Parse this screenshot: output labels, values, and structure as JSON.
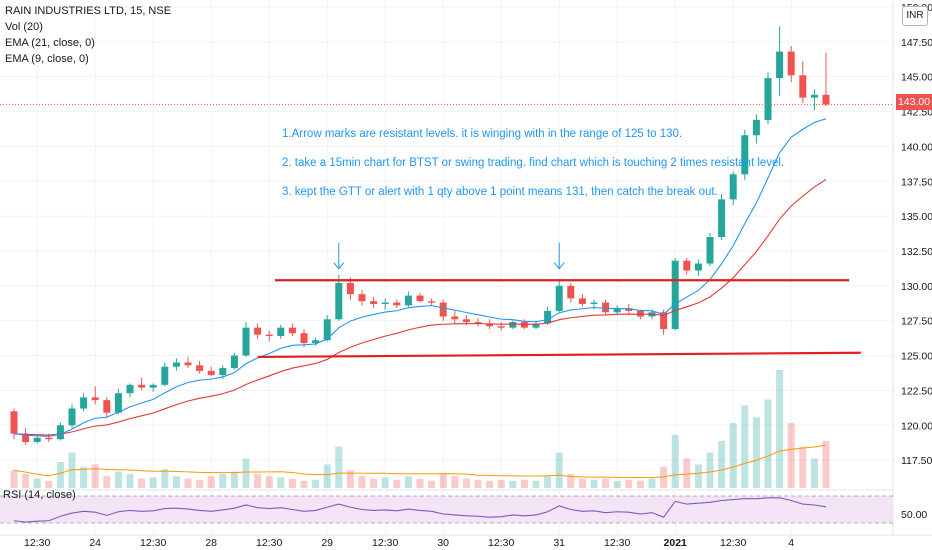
{
  "legend": {
    "title": "RAIN INDUSTRIES LTD, 15, NSE",
    "vol": "Vol (20)",
    "ema21": "EMA (21, close, 0)",
    "ema9": "EMA (9, close, 0)"
  },
  "currency_badge": "INR",
  "last_price_label": "143.00",
  "rsi_label": "RSI (14, close)",
  "notes": [
    "1.Arrow marks are resistant levels. it is winging with in the range of 125 to 130.",
    "2.  take a 15min chart for BTST or swing trading. find chart which is touching 2 times resistant level.",
    "3.  kept the GTT or alert with 1 qty above 1 point means 131, then catch the break out."
  ],
  "colors": {
    "up": "#26a69a",
    "down": "#ef5350",
    "ema9": "#2196f3",
    "ema21": "#e53935",
    "trendline": "#e31e1e",
    "annotation": "#2196f3",
    "rsi": "#7e57c2",
    "rsi_band": "#f3e5f5",
    "grid": "#f0f3fa",
    "axis_text": "#131722"
  },
  "chart_data": {
    "type": "candlestick",
    "symbol": "RAIN INDUSTRIES LTD",
    "interval": "15",
    "exchange": "NSE",
    "y_axis": {
      "ticks": [
        "117.50",
        "120.00",
        "122.50",
        "125.00",
        "127.50",
        "130.00",
        "132.50",
        "135.00",
        "137.50",
        "140.00",
        "142.50",
        "145.00",
        "147.50",
        "150.00"
      ],
      "ylim": [
        115.5,
        150.5
      ]
    },
    "x_axis": {
      "ticks": [
        {
          "label": "12:30",
          "i": 2
        },
        {
          "label": "24",
          "i": 7
        },
        {
          "label": "12:30",
          "i": 12
        },
        {
          "label": "28",
          "i": 17
        },
        {
          "label": "12:30",
          "i": 22
        },
        {
          "label": "29",
          "i": 27
        },
        {
          "label": "12:30",
          "i": 32
        },
        {
          "label": "30",
          "i": 37
        },
        {
          "label": "12:30",
          "i": 42
        },
        {
          "label": "31",
          "i": 47
        },
        {
          "label": "12:30",
          "i": 52
        },
        {
          "label": "2021",
          "i": 57
        },
        {
          "label": "12:30",
          "i": 62
        },
        {
          "label": "4",
          "i": 67
        }
      ]
    },
    "ohlc": [
      [
        121.0,
        121.2,
        119.0,
        119.4
      ],
      [
        119.4,
        119.8,
        118.6,
        118.8
      ],
      [
        118.8,
        119.3,
        118.7,
        119.1
      ],
      [
        119.1,
        119.4,
        118.8,
        119.0
      ],
      [
        119.0,
        120.2,
        118.9,
        120.0
      ],
      [
        120.0,
        121.5,
        119.8,
        121.2
      ],
      [
        121.2,
        122.3,
        121.0,
        122.0
      ],
      [
        122.0,
        122.8,
        121.5,
        121.8
      ],
      [
        121.8,
        122.0,
        120.5,
        120.9
      ],
      [
        120.9,
        122.6,
        120.8,
        122.3
      ],
      [
        122.3,
        123.0,
        122.0,
        122.9
      ],
      [
        122.9,
        123.4,
        122.5,
        122.7
      ],
      [
        122.7,
        123.0,
        122.4,
        122.9
      ],
      [
        122.9,
        124.5,
        122.8,
        124.2
      ],
      [
        124.2,
        124.8,
        123.9,
        124.5
      ],
      [
        124.5,
        124.9,
        124.1,
        124.3
      ],
      [
        124.3,
        124.6,
        123.7,
        123.9
      ],
      [
        123.9,
        124.2,
        123.5,
        123.6
      ],
      [
        123.6,
        124.3,
        123.3,
        124.1
      ],
      [
        124.1,
        125.2,
        124.0,
        125.0
      ],
      [
        125.0,
        127.4,
        124.9,
        127.0
      ],
      [
        127.0,
        127.3,
        126.2,
        126.5
      ],
      [
        126.5,
        126.8,
        126.0,
        126.4
      ],
      [
        126.4,
        127.2,
        126.2,
        127.0
      ],
      [
        127.0,
        127.3,
        126.4,
        126.6
      ],
      [
        126.6,
        126.9,
        125.6,
        125.9
      ],
      [
        125.9,
        126.3,
        125.7,
        126.1
      ],
      [
        126.1,
        127.9,
        126.0,
        127.6
      ],
      [
        127.6,
        130.8,
        127.5,
        130.2
      ],
      [
        130.2,
        130.6,
        129.0,
        129.4
      ],
      [
        129.4,
        129.7,
        128.6,
        128.9
      ],
      [
        128.9,
        129.2,
        128.4,
        128.7
      ],
      [
        128.7,
        129.1,
        128.3,
        128.8
      ],
      [
        128.8,
        129.0,
        128.4,
        128.6
      ],
      [
        128.6,
        129.6,
        128.5,
        129.3
      ],
      [
        129.3,
        129.5,
        128.8,
        128.9
      ],
      [
        128.9,
        129.1,
        128.6,
        128.8
      ],
      [
        128.8,
        129.0,
        127.5,
        127.8
      ],
      [
        127.8,
        128.2,
        127.3,
        127.6
      ],
      [
        127.6,
        127.9,
        127.2,
        127.4
      ],
      [
        127.4,
        127.7,
        127.1,
        127.3
      ],
      [
        127.3,
        127.6,
        126.9,
        127.1
      ],
      [
        127.1,
        127.4,
        126.8,
        127.0
      ],
      [
        127.0,
        127.5,
        126.9,
        127.4
      ],
      [
        127.4,
        127.6,
        126.9,
        127.0
      ],
      [
        127.0,
        127.5,
        126.9,
        127.3
      ],
      [
        127.3,
        128.5,
        127.2,
        128.2
      ],
      [
        128.2,
        130.5,
        128.1,
        130.0
      ],
      [
        130.0,
        130.2,
        128.8,
        129.1
      ],
      [
        129.1,
        129.4,
        128.5,
        128.7
      ],
      [
        128.7,
        129.0,
        128.3,
        128.8
      ],
      [
        128.8,
        129.0,
        127.9,
        128.1
      ],
      [
        128.1,
        128.6,
        127.9,
        128.4
      ],
      [
        128.4,
        128.7,
        128.0,
        128.2
      ],
      [
        128.2,
        128.3,
        127.6,
        127.8
      ],
      [
        127.8,
        128.3,
        127.6,
        128.1
      ],
      [
        128.1,
        128.3,
        126.5,
        126.9
      ],
      [
        126.9,
        132.0,
        126.8,
        131.8
      ],
      [
        131.8,
        132.0,
        130.8,
        131.1
      ],
      [
        131.1,
        131.9,
        130.7,
        131.6
      ],
      [
        131.6,
        133.8,
        131.4,
        133.5
      ],
      [
        133.5,
        136.6,
        133.3,
        136.2
      ],
      [
        136.2,
        138.2,
        135.8,
        138.0
      ],
      [
        138.0,
        141.2,
        137.6,
        140.8
      ],
      [
        140.8,
        142.3,
        140.2,
        141.9
      ],
      [
        141.9,
        145.3,
        141.6,
        144.9
      ],
      [
        144.9,
        148.6,
        143.6,
        146.8
      ],
      [
        146.8,
        147.2,
        144.6,
        145.1
      ],
      [
        145.1,
        146.1,
        143.1,
        143.5
      ],
      [
        143.5,
        144.1,
        142.6,
        143.7
      ],
      [
        143.7,
        146.7,
        142.9,
        143.0
      ]
    ],
    "volume": [
      0.15,
      0.12,
      0.08,
      0.06,
      0.22,
      0.3,
      0.18,
      0.2,
      0.1,
      0.14,
      0.12,
      0.08,
      0.09,
      0.16,
      0.1,
      0.08,
      0.07,
      0.1,
      0.12,
      0.14,
      0.25,
      0.12,
      0.1,
      0.09,
      0.08,
      0.06,
      0.07,
      0.2,
      0.35,
      0.15,
      0.1,
      0.08,
      0.09,
      0.07,
      0.1,
      0.08,
      0.06,
      0.12,
      0.1,
      0.08,
      0.07,
      0.06,
      0.07,
      0.06,
      0.07,
      0.06,
      0.1,
      0.3,
      0.12,
      0.08,
      0.07,
      0.08,
      0.06,
      0.07,
      0.06,
      0.08,
      0.18,
      0.45,
      0.25,
      0.2,
      0.3,
      0.4,
      0.55,
      0.7,
      0.6,
      0.75,
      1.0,
      0.55,
      0.35,
      0.25,
      0.4
    ],
    "rsi": [
      35,
      32,
      34,
      35,
      45,
      52,
      56,
      54,
      47,
      55,
      58,
      56,
      57,
      62,
      63,
      61,
      58,
      56,
      59,
      63,
      70,
      64,
      62,
      64,
      60,
      56,
      58,
      65,
      72,
      65,
      60,
      58,
      59,
      57,
      61,
      58,
      56,
      50,
      48,
      46,
      45,
      43,
      44,
      48,
      46,
      48,
      55,
      68,
      60,
      56,
      57,
      53,
      55,
      54,
      50,
      53,
      43,
      78,
      72,
      74,
      76,
      80,
      82,
      84,
      84,
      86,
      86,
      80,
      72,
      70,
      66
    ],
    "rsi_axis": {
      "ticks": [
        "50.00"
      ]
    },
    "resistance_lines": [
      {
        "from": [
          22.5,
          130.4
        ],
        "to": [
          72,
          130.4
        ]
      },
      {
        "from": [
          21,
          124.9
        ],
        "to": [
          73,
          125.2
        ]
      }
    ],
    "arrow_markers": [
      {
        "i": 28,
        "label": "resistance touch 1"
      },
      {
        "i": 47,
        "label": "resistance touch 2"
      }
    ],
    "last_price": 143.0
  }
}
